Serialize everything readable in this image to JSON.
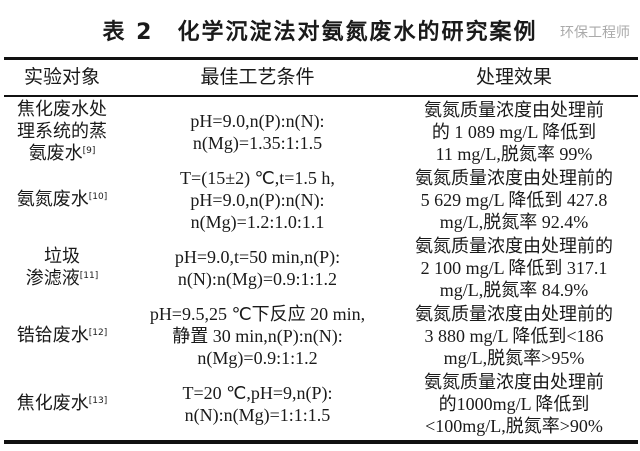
{
  "title": "表 2　化学沉淀法对氨氮废水的研究案例",
  "headers": [
    "实验对象",
    "最佳工艺条件",
    "处理效果"
  ],
  "rows": [
    {
      "subject": [
        "焦化废水处",
        "理系统的蒸",
        "氨废水"
      ],
      "ref": "[9]",
      "conditions": [
        "pH=9.0,n(P):n(N):",
        "n(Mg)=1.35:1:1.5"
      ],
      "effect": [
        "氨氮质量浓度由处理前",
        "的 1 089 mg/L 降低到",
        "11 mg/L,脱氮率 99%"
      ]
    },
    {
      "subject": [
        "氨氮废水"
      ],
      "ref": "[10]",
      "conditions": [
        "T=(15±2) ℃,t=1.5 h,",
        "pH=9.0,n(P):n(N):",
        "n(Mg)=1.2:1.0:1.1"
      ],
      "effect": [
        "氨氮质量浓度由处理前的",
        "5 629 mg/L 降低到 427.8",
        "mg/L,脱氮率 92.4%"
      ]
    },
    {
      "subject": [
        "垃圾",
        "渗滤液"
      ],
      "ref": "[11]",
      "conditions": [
        "pH=9.0,t=50 min,n(P):",
        "n(N):n(Mg)=0.9:1:1.2"
      ],
      "effect": [
        "氨氮质量浓度由处理前的",
        "2 100 mg/L 降低到 317.1",
        "mg/L,脱氮率 84.9%"
      ]
    },
    {
      "subject": [
        "锆铪废水"
      ],
      "ref": "[12]",
      "conditions": [
        "pH=9.5,25 ℃下反应 20 min,",
        "静置 30 min,n(P):n(N):",
        "n(Mg)=0.9:1:1.2"
      ],
      "effect": [
        "氨氮质量浓度由处理前的",
        "3 880 mg/L 降低到<186",
        "mg/L,脱氮率>95%"
      ]
    },
    {
      "subject": [
        "焦化废水"
      ],
      "ref": "[13]",
      "conditions": [
        "T=20 ℃,pH=9,n(P):",
        "n(N):n(Mg)=1:1:1.5"
      ],
      "effect": [
        "氨氮质量浓度由处理前",
        "的1000mg/L 降低到",
        "<100mg/L,脱氮率>90%"
      ]
    }
  ],
  "watermark": "环保工程师"
}
